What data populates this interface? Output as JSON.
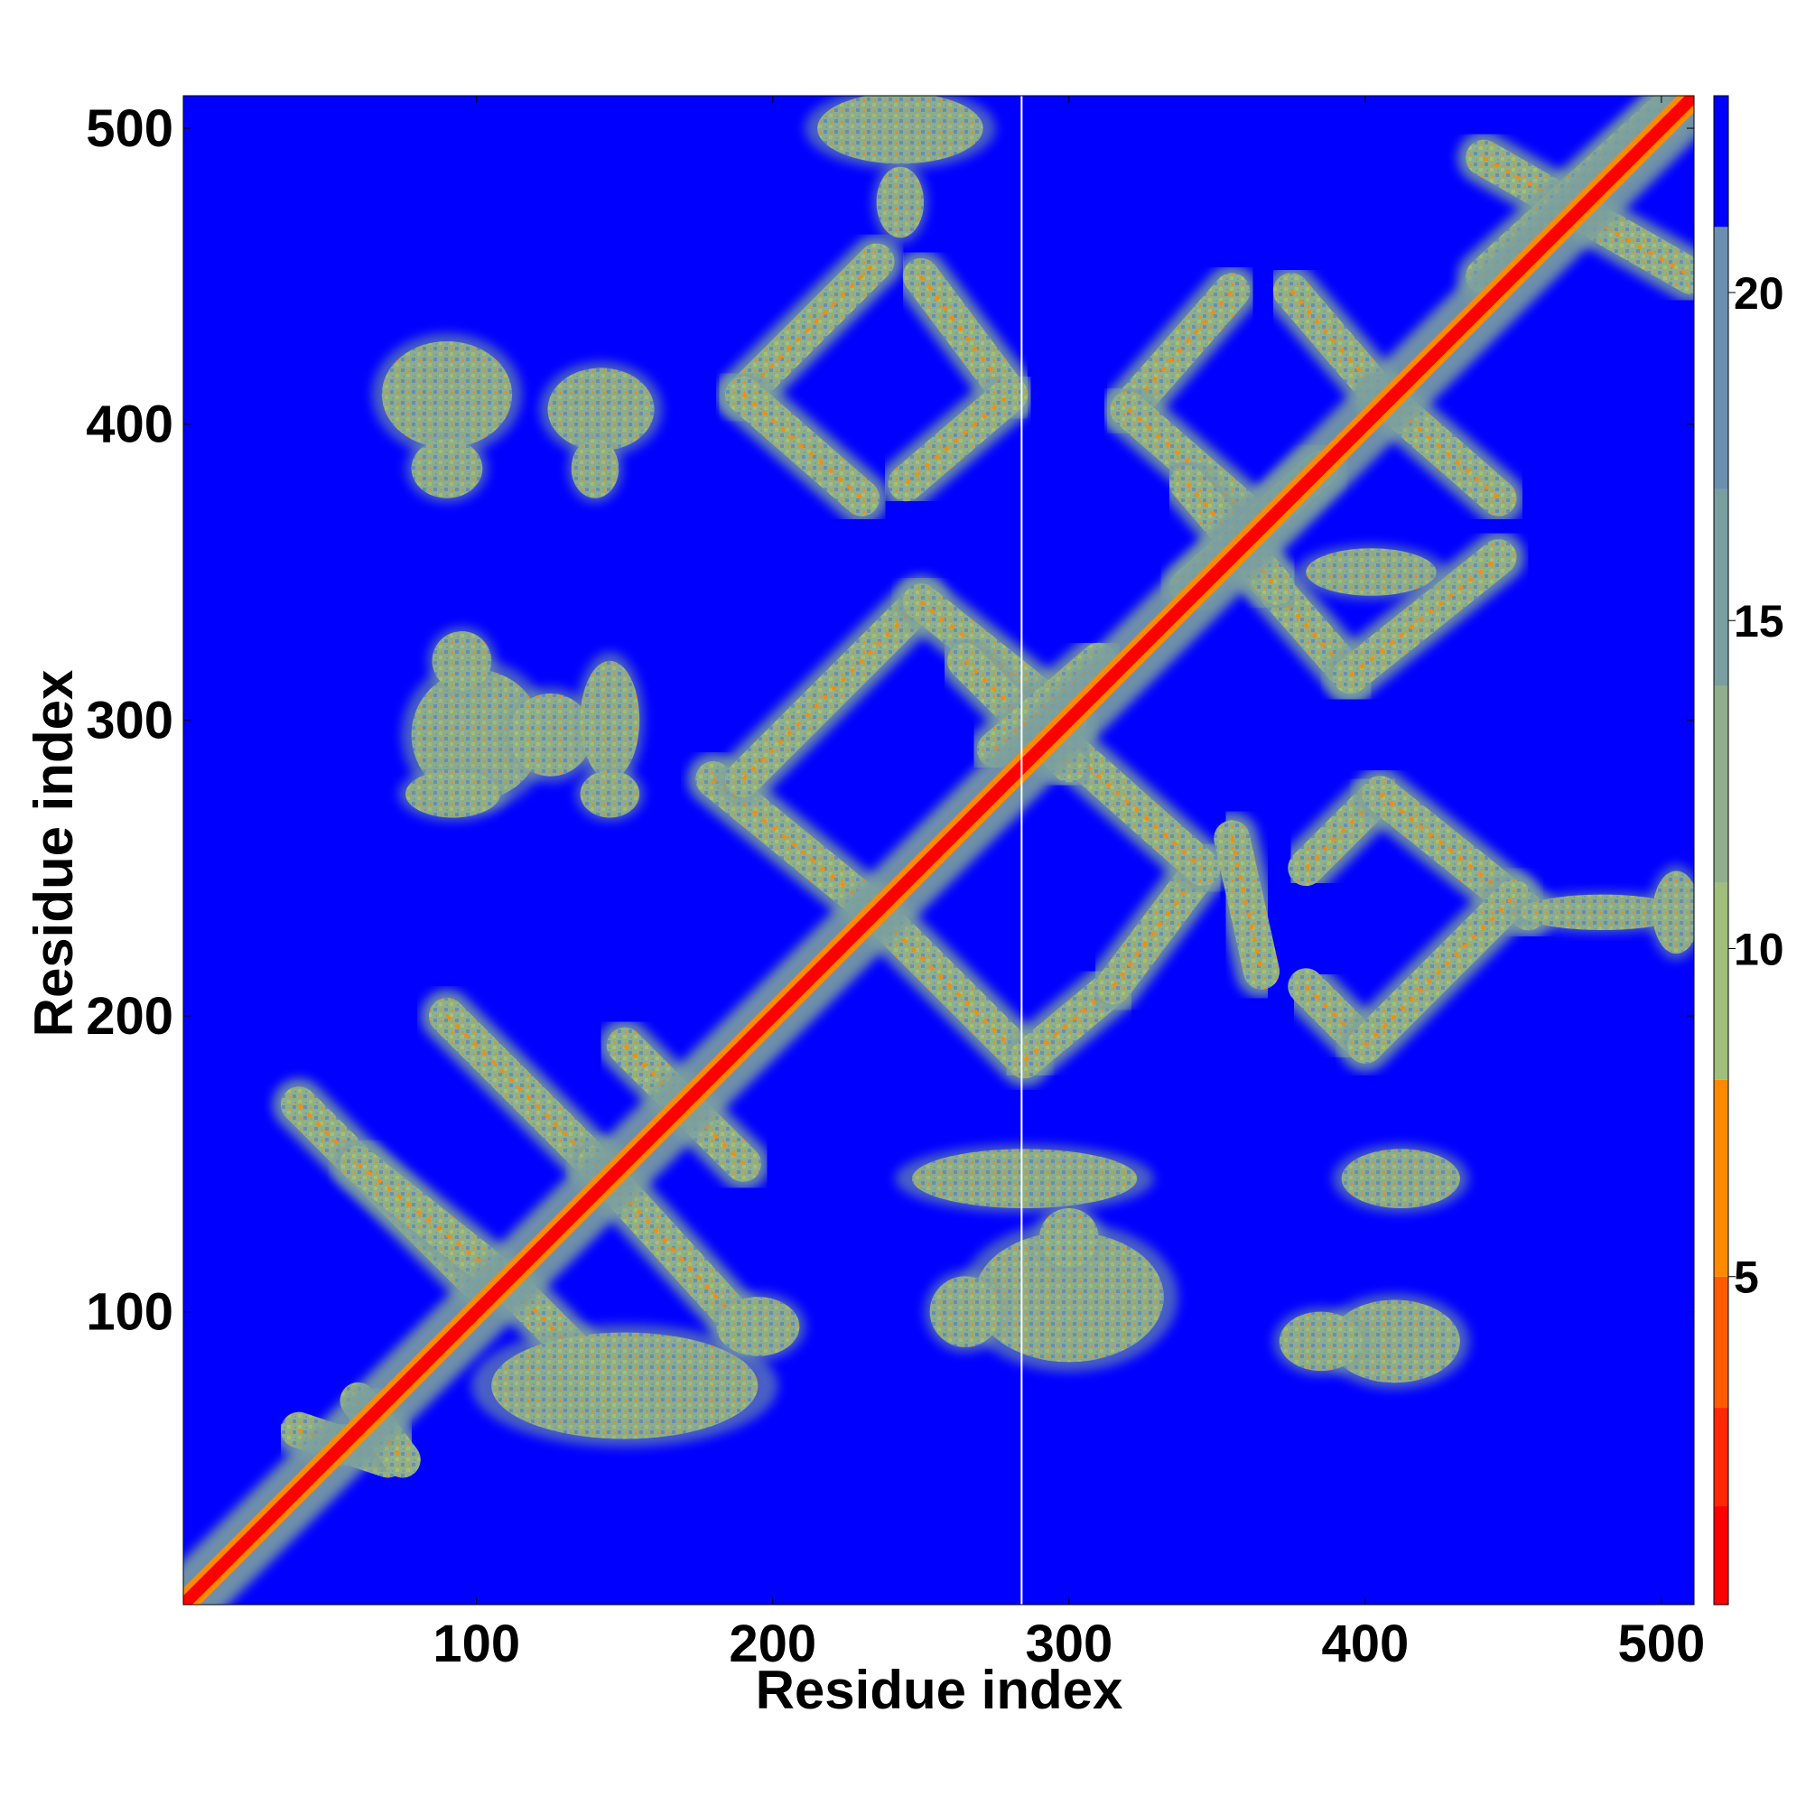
{
  "chart_data": {
    "type": "heatmap",
    "title": "",
    "xlabel": "Residue index",
    "ylabel": "Residue index",
    "xlim": [
      1,
      511
    ],
    "ylim": [
      1,
      511
    ],
    "xticks": [
      100,
      200,
      300,
      400,
      500
    ],
    "yticks": [
      100,
      200,
      300,
      400,
      500
    ],
    "colorbar": {
      "ticks": [
        5,
        10,
        15,
        20
      ],
      "range": [
        0,
        23
      ],
      "colors": [
        "#ff0000",
        "#ff2800",
        "#ff5a00",
        "#ff8a00",
        "#9fbf7a",
        "#8fb08a",
        "#7a9fa0",
        "#6a8fb0",
        "#0000ff"
      ],
      "bounds": [
        0,
        1.5,
        3,
        5,
        8,
        11,
        14,
        17,
        21,
        23
      ]
    },
    "background_color": "#0000ff",
    "diagonal_color": "#ff0000",
    "gap_column": 284,
    "contact_bands": [
      {
        "x1": 180,
        "y1": 280,
        "x2": 235,
        "y2": 235
      },
      {
        "x1": 190,
        "y1": 280,
        "x2": 250,
        "y2": 340
      },
      {
        "x1": 250,
        "y1": 340,
        "x2": 300,
        "y2": 300
      },
      {
        "x1": 235,
        "y1": 235,
        "x2": 285,
        "y2": 185
      },
      {
        "x1": 285,
        "y1": 185,
        "x2": 315,
        "y2": 210
      },
      {
        "x1": 315,
        "y1": 210,
        "x2": 345,
        "y2": 250
      },
      {
        "x1": 300,
        "y1": 290,
        "x2": 345,
        "y2": 250
      },
      {
        "x1": 190,
        "y1": 410,
        "x2": 235,
        "y2": 455
      },
      {
        "x1": 190,
        "y1": 410,
        "x2": 230,
        "y2": 375
      },
      {
        "x1": 250,
        "y1": 450,
        "x2": 280,
        "y2": 410
      },
      {
        "x1": 245,
        "y1": 380,
        "x2": 280,
        "y2": 410
      },
      {
        "x1": 320,
        "y1": 405,
        "x2": 355,
        "y2": 445
      },
      {
        "x1": 320,
        "y1": 405,
        "x2": 360,
        "y2": 370
      },
      {
        "x1": 375,
        "y1": 445,
        "x2": 405,
        "y2": 410
      },
      {
        "x1": 405,
        "y1": 410,
        "x2": 445,
        "y2": 375
      },
      {
        "x1": 360,
        "y1": 355,
        "x2": 395,
        "y2": 315
      },
      {
        "x1": 395,
        "y1": 315,
        "x2": 445,
        "y2": 355
      },
      {
        "x1": 380,
        "y1": 250,
        "x2": 405,
        "y2": 275
      },
      {
        "x1": 405,
        "y1": 275,
        "x2": 455,
        "y2": 235
      },
      {
        "x1": 380,
        "y1": 210,
        "x2": 400,
        "y2": 190
      },
      {
        "x1": 400,
        "y1": 190,
        "x2": 450,
        "y2": 240
      },
      {
        "x1": 40,
        "y1": 170,
        "x2": 100,
        "y2": 110
      },
      {
        "x1": 90,
        "y1": 200,
        "x2": 140,
        "y2": 150
      },
      {
        "x1": 110,
        "y1": 110,
        "x2": 150,
        "y2": 70
      },
      {
        "x1": 140,
        "y1": 150,
        "x2": 190,
        "y2": 95
      },
      {
        "x1": 60,
        "y1": 150,
        "x2": 110,
        "y2": 110
      },
      {
        "x1": 150,
        "y1": 190,
        "x2": 190,
        "y2": 150
      },
      {
        "x1": 40,
        "y1": 60,
        "x2": 70,
        "y2": 50
      },
      {
        "x1": 60,
        "y1": 70,
        "x2": 75,
        "y2": 50
      },
      {
        "x1": 440,
        "y1": 490,
        "x2": 510,
        "y2": 450
      },
      {
        "x1": 440,
        "y1": 450,
        "x2": 500,
        "y2": 505
      },
      {
        "x1": 340,
        "y1": 380,
        "x2": 370,
        "y2": 345
      },
      {
        "x1": 340,
        "y1": 345,
        "x2": 385,
        "y2": 385
      },
      {
        "x1": 265,
        "y1": 320,
        "x2": 300,
        "y2": 285
      },
      {
        "x1": 275,
        "y1": 290,
        "x2": 310,
        "y2": 320
      },
      {
        "x1": 355,
        "y1": 260,
        "x2": 365,
        "y2": 215
      }
    ],
    "contact_patches": [
      {
        "x": 90,
        "y": 410,
        "rx": 22,
        "ry": 18
      },
      {
        "x": 90,
        "y": 385,
        "rx": 12,
        "ry": 10
      },
      {
        "x": 142,
        "y": 405,
        "rx": 18,
        "ry": 14
      },
      {
        "x": 140,
        "y": 385,
        "rx": 8,
        "ry": 10
      },
      {
        "x": 100,
        "y": 295,
        "rx": 22,
        "ry": 22
      },
      {
        "x": 95,
        "y": 320,
        "rx": 10,
        "ry": 10
      },
      {
        "x": 125,
        "y": 295,
        "rx": 14,
        "ry": 14
      },
      {
        "x": 92,
        "y": 275,
        "rx": 16,
        "ry": 8
      },
      {
        "x": 145,
        "y": 300,
        "rx": 10,
        "ry": 20
      },
      {
        "x": 145,
        "y": 275,
        "rx": 10,
        "ry": 8
      },
      {
        "x": 243,
        "y": 500,
        "rx": 28,
        "ry": 12
      },
      {
        "x": 243,
        "y": 475,
        "rx": 8,
        "ry": 12
      },
      {
        "x": 285,
        "y": 145,
        "rx": 38,
        "ry": 10
      },
      {
        "x": 300,
        "y": 105,
        "rx": 32,
        "ry": 22
      },
      {
        "x": 265,
        "y": 100,
        "rx": 12,
        "ry": 12
      },
      {
        "x": 300,
        "y": 125,
        "rx": 10,
        "ry": 10
      },
      {
        "x": 412,
        "y": 145,
        "rx": 20,
        "ry": 10
      },
      {
        "x": 410,
        "y": 90,
        "rx": 22,
        "ry": 14
      },
      {
        "x": 385,
        "y": 90,
        "rx": 14,
        "ry": 10
      },
      {
        "x": 402,
        "y": 350,
        "rx": 22,
        "ry": 8
      },
      {
        "x": 480,
        "y": 235,
        "rx": 28,
        "ry": 6
      },
      {
        "x": 505,
        "y": 235,
        "rx": 8,
        "ry": 14
      },
      {
        "x": 150,
        "y": 75,
        "rx": 45,
        "ry": 18
      },
      {
        "x": 195,
        "y": 95,
        "rx": 14,
        "ry": 10
      }
    ]
  }
}
